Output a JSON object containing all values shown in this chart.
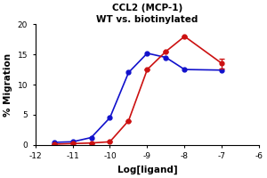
{
  "title_line1": "CCL2 (MCP-1)",
  "title_line2": "WT vs. biotinylated",
  "xlabel": "Log[ligand]",
  "ylabel": "% Migration",
  "xlim": [
    -12,
    -6
  ],
  "ylim": [
    0,
    20
  ],
  "xticks": [
    -12,
    -11,
    -10,
    -9,
    -8,
    -7,
    -6
  ],
  "yticks": [
    0,
    5,
    10,
    15,
    20
  ],
  "blue_x": [
    -11.5,
    -11,
    -10.5,
    -10,
    -9.5,
    -9,
    -8.5,
    -8,
    -7
  ],
  "blue_y": [
    0.4,
    0.5,
    1.2,
    4.5,
    12.0,
    15.2,
    14.5,
    12.5,
    12.4
  ],
  "red_x": [
    -11.5,
    -11,
    -10.5,
    -10,
    -9.5,
    -9,
    -8.5,
    -8,
    -7
  ],
  "red_y": [
    0.1,
    0.2,
    0.3,
    0.5,
    4.0,
    12.5,
    15.5,
    18.0,
    13.5
  ],
  "red_yerr": [
    0.0,
    0.0,
    0.0,
    0.0,
    0.0,
    0.0,
    0.0,
    0.0,
    0.8
  ],
  "blue_color": "#1111CC",
  "red_color": "#CC1111",
  "marker": "o",
  "markersize": 3.5,
  "linewidth": 1.2,
  "title1_fontsize": 7.5,
  "title2_fontsize": 7.5,
  "axis_label_fontsize": 7.5,
  "tick_fontsize": 6.5
}
